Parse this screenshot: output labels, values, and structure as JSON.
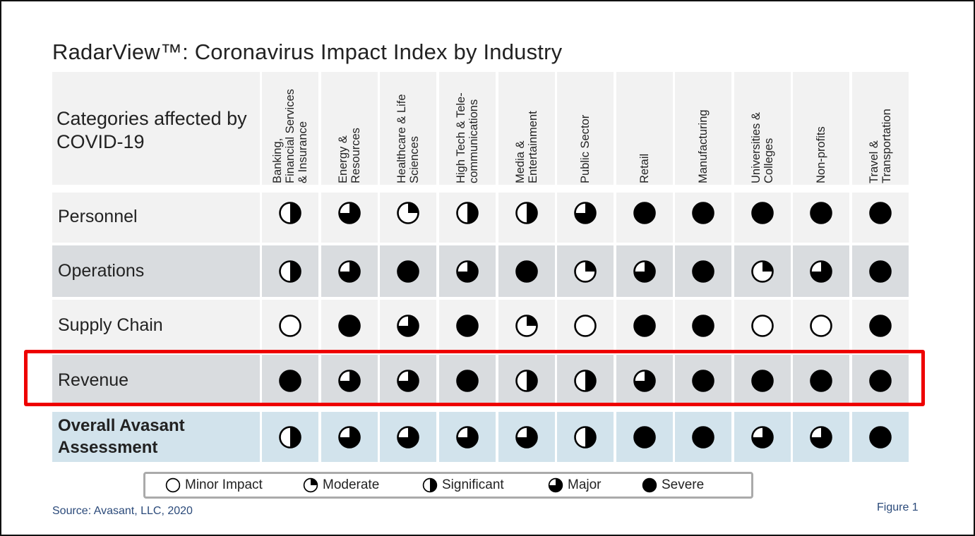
{
  "title": "RadarView™: Coronavirus Impact Index by Industry",
  "header_label": "Categories affected by COVID-19",
  "industries": [
    {
      "lines": [
        "Banking,",
        "Financial Services",
        "& Insurance"
      ]
    },
    {
      "lines": [
        "Energy &",
        "Resources"
      ]
    },
    {
      "lines": [
        "Healthcare & Life",
        "Sciences"
      ]
    },
    {
      "lines": [
        "High Tech & Tele-",
        "communications"
      ]
    },
    {
      "lines": [
        "Media &",
        "Entertainment"
      ]
    },
    {
      "lines": [
        "Public Sector"
      ]
    },
    {
      "lines": [
        "Retail"
      ]
    },
    {
      "lines": [
        "Manufacturing"
      ]
    },
    {
      "lines": [
        "Universities &",
        "Colleges"
      ]
    },
    {
      "lines": [
        "Non-profits"
      ]
    },
    {
      "lines": [
        "Travel &",
        "Transportation"
      ]
    }
  ],
  "rows": [
    {
      "label": "Personnel",
      "bold": false,
      "highlighted": false,
      "levels": [
        2,
        3,
        1,
        2,
        2,
        3,
        4,
        4,
        4,
        4,
        4
      ]
    },
    {
      "label": "Operations",
      "bold": false,
      "highlighted": false,
      "levels": [
        2,
        3,
        4,
        3,
        4,
        1,
        3,
        4,
        1,
        3,
        4
      ]
    },
    {
      "label": "Supply Chain",
      "bold": false,
      "highlighted": false,
      "levels": [
        0,
        4,
        3,
        4,
        1,
        0,
        4,
        4,
        0,
        0,
        4
      ]
    },
    {
      "label": "Revenue",
      "bold": false,
      "highlighted": true,
      "levels": [
        4,
        3,
        3,
        4,
        2,
        2,
        3,
        4,
        4,
        4,
        4
      ]
    },
    {
      "label_lines": [
        "Overall Avasant",
        "Assessment"
      ],
      "bold": true,
      "highlighted": false,
      "levels": [
        2,
        3,
        3,
        3,
        3,
        2,
        4,
        4,
        3,
        3,
        4
      ]
    }
  ],
  "legend": [
    {
      "level": 0,
      "label": "Minor Impact"
    },
    {
      "level": 1,
      "label": "Moderate"
    },
    {
      "level": 2,
      "label": "Significant"
    },
    {
      "level": 3,
      "label": "Major"
    },
    {
      "level": 4,
      "label": "Severe"
    }
  ],
  "source": "Source: Avasant, LLC, 2020",
  "figure_label": "Figure 1",
  "colors": {
    "row_light": "#f2f2f2",
    "row_dark": "#d9dcdf",
    "overall_row": "#d2e3ec",
    "highlight": "#ee0000",
    "text_blue": "#2b4a7a",
    "ball": "#000000"
  }
}
